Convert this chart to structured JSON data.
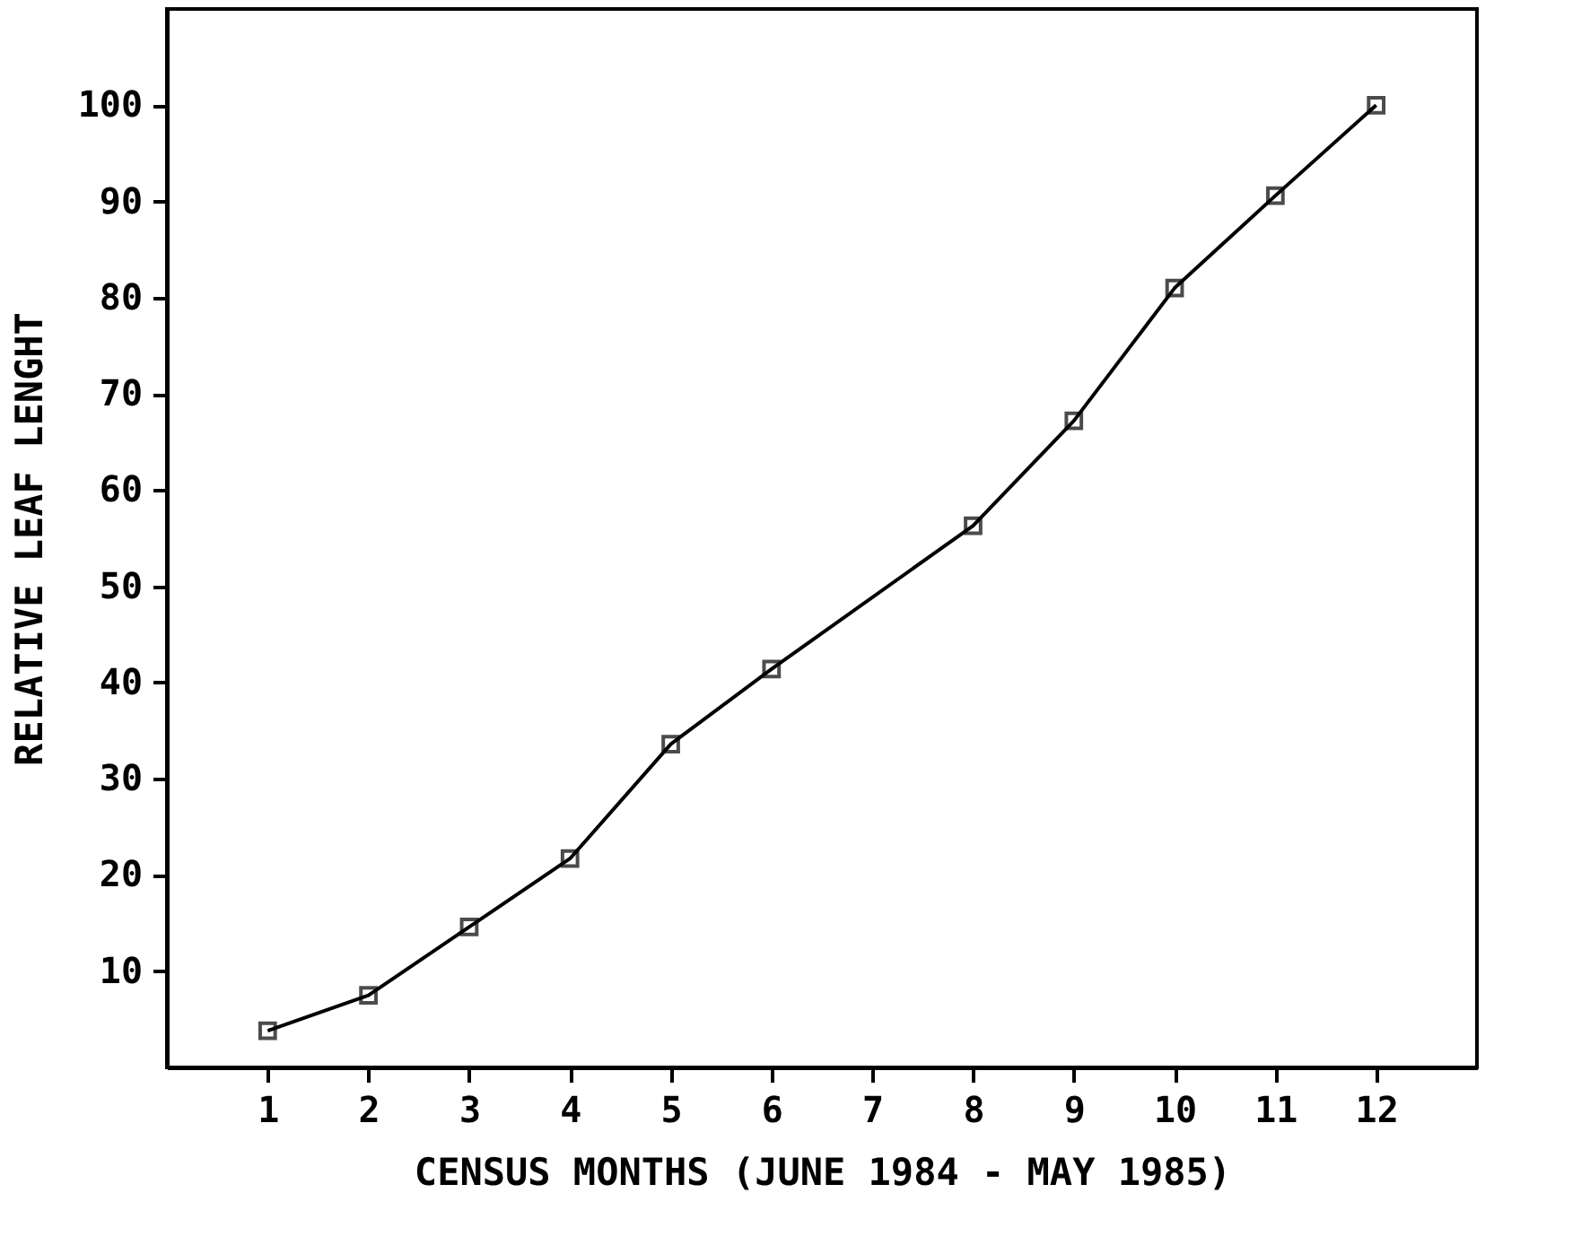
{
  "chart_data": {
    "type": "line",
    "xlabel": "CENSUS MONTHS (JUNE 1984 - MAY 1985)",
    "ylabel": "RELATIVE LEAF LENGHT",
    "x": [
      1,
      2,
      3,
      4,
      5,
      6,
      8,
      9,
      10,
      11,
      12
    ],
    "series": [
      {
        "color": "#000000",
        "values": [
          3.8,
          7.5,
          14.6,
          21.7,
          33.6,
          41.4,
          56.3,
          67.2,
          81.0,
          90.6,
          100
        ]
      }
    ],
    "xlim": [
      0,
      13
    ],
    "xticks": [
      1,
      2,
      3,
      4,
      5,
      6,
      7,
      8,
      9,
      10,
      11,
      12
    ],
    "ylim": [
      0,
      110
    ],
    "yticks": [
      10,
      20,
      30,
      40,
      50,
      60,
      70,
      80,
      90,
      100
    ],
    "marker": "square",
    "line_style": "solid",
    "grid": false
  }
}
